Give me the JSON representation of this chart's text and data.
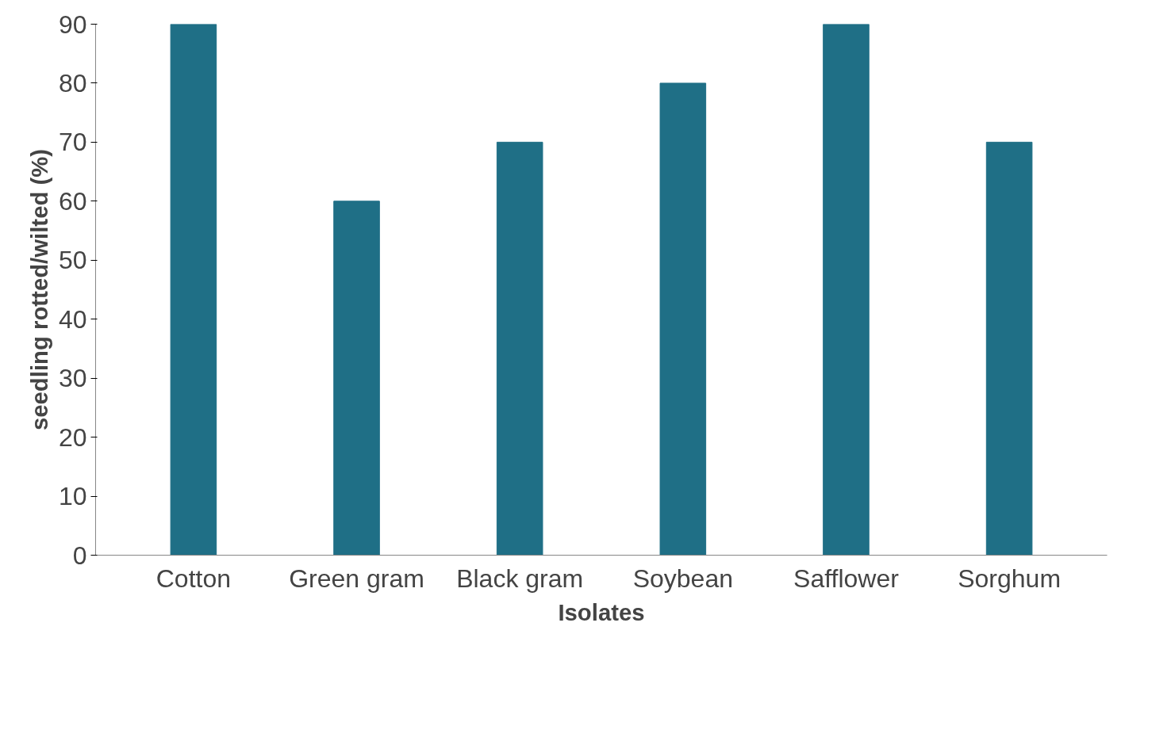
{
  "chart_data": {
    "type": "bar",
    "xlabel": "Isolates",
    "ylabel": "seedling rotted/wilted (%)",
    "categories": [
      "Cotton",
      "Green gram",
      "Black gram",
      "Soybean",
      "Safflower",
      "Sorghum"
    ],
    "values": [
      90,
      60,
      70,
      80,
      90,
      70
    ],
    "color": "#1f6f86",
    "ylim": [
      0,
      90
    ],
    "yticks": [
      0,
      10,
      20,
      30,
      40,
      50,
      60,
      70,
      80,
      90
    ],
    "grid": false
  }
}
